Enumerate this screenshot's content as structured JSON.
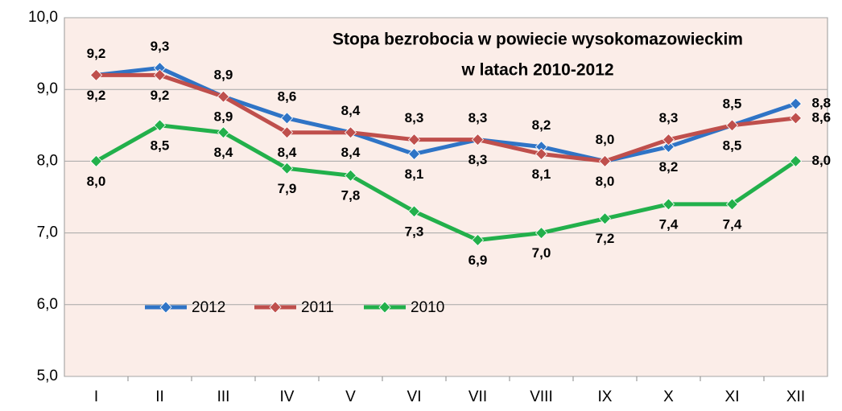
{
  "chart_data": {
    "type": "line",
    "title": [
      "Stopa bezrobocia w powiecie wysokomazowieckim",
      "w latach 2010-2012"
    ],
    "categories": [
      "I",
      "II",
      "III",
      "IV",
      "V",
      "VI",
      "VII",
      "VIII",
      "IX",
      "X",
      "XI",
      "XII"
    ],
    "series": [
      {
        "name": "2012",
        "color": "#2f74c6",
        "values": [
          9.2,
          9.3,
          8.9,
          8.6,
          8.4,
          8.1,
          8.3,
          8.2,
          8.0,
          8.2,
          8.5,
          8.8
        ],
        "value_labels": [
          "9,2",
          "9,3",
          "8,9",
          "8,6",
          "8,4",
          "8,1",
          "8,3",
          "8,2",
          "8,0",
          "8,2",
          "8,5",
          "8,8"
        ]
      },
      {
        "name": "2011",
        "color": "#bf4f4c",
        "values": [
          9.2,
          9.2,
          8.9,
          8.4,
          8.4,
          8.3,
          8.3,
          8.1,
          8.0,
          8.3,
          8.5,
          8.6
        ],
        "value_labels": [
          "9,2",
          "9,2",
          "8,9",
          "8,4",
          "8,4",
          "8,3",
          "8,3",
          "8,1",
          "8,0",
          "8,3",
          "8,5",
          "8,6"
        ]
      },
      {
        "name": "2010",
        "color": "#22b04b",
        "values": [
          8.0,
          8.5,
          8.4,
          7.9,
          7.8,
          7.3,
          6.9,
          7.0,
          7.2,
          7.4,
          7.4,
          8.0
        ],
        "value_labels": [
          "8,0",
          "8,5",
          "8,4",
          "7,9",
          "7,8",
          "7,3",
          "6,9",
          "7,0",
          "7,2",
          "7,4",
          "7,4",
          "8,0"
        ]
      }
    ],
    "ylim": [
      5,
      10
    ],
    "yticks": [
      {
        "value": 5,
        "label": "5,0"
      },
      {
        "value": 6,
        "label": "6,0"
      },
      {
        "value": 7,
        "label": "7,0"
      },
      {
        "value": 8,
        "label": "8,0"
      },
      {
        "value": 9,
        "label": "9,0"
      },
      {
        "value": 10,
        "label": "10,0"
      }
    ],
    "grid": true,
    "legend": "lower left"
  }
}
